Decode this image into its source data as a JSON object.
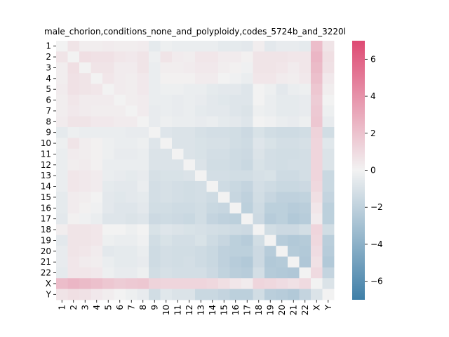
{
  "chart_data": {
    "type": "heatmap",
    "title": "male_chorion,conditions_none_and_polyploidy,codes_5724b_and_3220l",
    "labels": [
      "1",
      "2",
      "3",
      "4",
      "5",
      "6",
      "7",
      "8",
      "9",
      "10",
      "11",
      "12",
      "13",
      "14",
      "15",
      "16",
      "17",
      "18",
      "19",
      "20",
      "21",
      "22",
      "X",
      "Y"
    ],
    "colorbar": {
      "range": [
        -7,
        7
      ],
      "ticks": [
        -6,
        -4,
        -2,
        0,
        2,
        4,
        6
      ],
      "tick_labels": [
        "−6",
        "−4",
        "−2",
        "0",
        "2",
        "4",
        "6"
      ],
      "colormap": "diverging",
      "colors": {
        "low": "#3f7fa8",
        "mid": "#f2f2f2",
        "high": "#de4a73"
      }
    },
    "values": [
      [
        0,
        0.6,
        0.2,
        0.2,
        0.3,
        0.2,
        0.2,
        0.3,
        -0.5,
        -0.2,
        -0.3,
        -0.3,
        -0.3,
        -0.3,
        -0.5,
        -0.5,
        -0.6,
        0.2,
        -0.6,
        -0.4,
        -0.4,
        -0.5,
        2.2,
        0.6
      ],
      [
        0.6,
        0,
        0.8,
        0.7,
        0.7,
        0.5,
        0.4,
        0.6,
        -0.2,
        0.6,
        0.3,
        0.2,
        0.5,
        0.5,
        0.3,
        0.3,
        0.1,
        0.6,
        0.6,
        0.6,
        0.5,
        0.5,
        2.5,
        0.8
      ],
      [
        0.2,
        0.8,
        0,
        0.6,
        0.6,
        0.3,
        0.3,
        0.6,
        -0.3,
        0.2,
        0.2,
        0.3,
        0.4,
        0.4,
        0.2,
        0.1,
        -0.1,
        0.6,
        0.6,
        0.5,
        0.3,
        0.5,
        2.3,
        0.7
      ],
      [
        0.2,
        0.7,
        0.6,
        0,
        0.5,
        0.3,
        0.2,
        0.4,
        -0.3,
        0.1,
        0.1,
        0.1,
        0.3,
        0.3,
        0,
        -0.1,
        -0.3,
        0.5,
        0.5,
        0.3,
        0.2,
        0.4,
        2.1,
        0.4
      ],
      [
        0.3,
        0.7,
        0.6,
        0.5,
        0,
        0.3,
        0.2,
        0.4,
        -0.3,
        -0.2,
        -0.2,
        -0.3,
        -0.3,
        -0.5,
        -0.6,
        -0.6,
        -0.8,
        0,
        -0.2,
        -0.6,
        -0.3,
        -0.2,
        1.8,
        0.2
      ],
      [
        0.2,
        0.5,
        0.3,
        0.3,
        0.3,
        0,
        0.2,
        0.3,
        -0.3,
        -0.3,
        -0.4,
        -0.3,
        -0.4,
        -0.6,
        -0.7,
        -0.8,
        -0.8,
        0,
        -0.3,
        -0.5,
        -0.5,
        -0.4,
        1.6,
        0
      ],
      [
        0.2,
        0.4,
        0.3,
        0.2,
        0.2,
        0.2,
        0,
        0.3,
        -0.4,
        -0.3,
        -0.4,
        -0.3,
        -0.5,
        -0.6,
        -0.6,
        -0.8,
        -0.9,
        -0.2,
        -0.3,
        -0.5,
        -0.5,
        -0.4,
        1.7,
        -0.2
      ],
      [
        0.3,
        0.6,
        0.6,
        0.4,
        0.4,
        0.3,
        0.3,
        0,
        -0.4,
        -0.2,
        -0.3,
        -0.3,
        -0.4,
        -0.3,
        -0.5,
        -0.6,
        -0.8,
        0,
        -0.1,
        -0.3,
        -0.4,
        -0.2,
        1.8,
        -0.4
      ],
      [
        -0.5,
        -0.2,
        -0.3,
        -0.3,
        -0.3,
        -0.3,
        -0.4,
        -0.4,
        0,
        -0.8,
        -0.9,
        -0.9,
        -1.1,
        -1.2,
        -1.2,
        -1.3,
        -1.5,
        -1,
        -1.3,
        -1.4,
        -1.4,
        -1.3,
        1.3,
        -1.3
      ],
      [
        -0.2,
        0.6,
        0.2,
        0.1,
        -0.2,
        -0.3,
        -0.3,
        -0.2,
        -0.8,
        0,
        -0.9,
        -0.9,
        -1,
        -1.1,
        -1.1,
        -1.3,
        -1.4,
        -0.8,
        -1,
        -1.2,
        -1.2,
        -1.1,
        1.2,
        -0.7
      ],
      [
        -0.3,
        0.3,
        0.2,
        0.1,
        -0.2,
        -0.4,
        -0.4,
        -0.3,
        -0.9,
        -0.9,
        0,
        -0.9,
        -1,
        -1.2,
        -1.2,
        -1.4,
        -1.5,
        -0.9,
        -1.2,
        -1.3,
        -1.3,
        -1.2,
        1.2,
        -0.9
      ],
      [
        -0.3,
        0.2,
        0.3,
        0.1,
        -0.3,
        -0.3,
        -0.3,
        -0.3,
        -0.9,
        -0.9,
        -0.9,
        0,
        -0.9,
        -1.3,
        -1.3,
        -1.4,
        -1.6,
        -1,
        -1.2,
        -1.3,
        -1.2,
        -1.2,
        1.2,
        -0.9
      ],
      [
        -0.3,
        0.5,
        0.4,
        0.3,
        -0.3,
        -0.4,
        -0.5,
        -0.4,
        -1.1,
        -1,
        -1,
        -0.9,
        0,
        -1.2,
        -1.2,
        -1.3,
        -1.3,
        -1.1,
        -1,
        -1.4,
        -1.4,
        -1.2,
        1.2,
        -1.6
      ],
      [
        -0.3,
        0.5,
        0.4,
        0.3,
        -0.5,
        -0.6,
        -0.6,
        -0.3,
        -1.2,
        -1.1,
        -1.2,
        -1.3,
        -1.2,
        0,
        -1.4,
        -1.6,
        -1.8,
        -1.2,
        -1.4,
        -1.6,
        -1.6,
        -1.5,
        1.1,
        -1.6
      ],
      [
        -0.5,
        0.3,
        0.2,
        0,
        -0.6,
        -0.7,
        -0.6,
        -0.5,
        -1.2,
        -1.1,
        -1.2,
        -1.3,
        -1.2,
        -1.4,
        0,
        -1.7,
        -2,
        -1.3,
        -1.7,
        -2,
        -2,
        -1.9,
        0.8,
        -1.8
      ],
      [
        -0.5,
        0.3,
        0.1,
        -0.1,
        -0.6,
        -0.8,
        -0.8,
        -0.6,
        -1.3,
        -1.3,
        -1.4,
        -1.4,
        -1.3,
        -1.6,
        -1.7,
        0,
        -2.1,
        -1.4,
        -2.1,
        -2.1,
        -2.3,
        -2.2,
        0.5,
        -2.1
      ],
      [
        -0.6,
        0.1,
        -0.1,
        -0.3,
        -0.8,
        -0.8,
        -0.9,
        -0.8,
        -1.5,
        -1.4,
        -1.5,
        -1.6,
        -1.3,
        -1.8,
        -2,
        -2.1,
        0,
        -1.5,
        -2.3,
        -2.1,
        -2.5,
        -2.3,
        0.3,
        -2.1
      ],
      [
        0.2,
        0.6,
        0.6,
        0.5,
        0,
        0,
        -0.2,
        0,
        -1,
        -0.8,
        -0.9,
        -1,
        -1.1,
        -1.2,
        -1.3,
        -1.4,
        -1.5,
        0,
        -1.3,
        -1.5,
        -1.5,
        -1.2,
        1.2,
        -1.3
      ],
      [
        -0.6,
        0.6,
        0.6,
        0.5,
        -0.2,
        -0.3,
        -0.3,
        -0.1,
        -1.3,
        -1,
        -1.2,
        -1.2,
        -1,
        -1.4,
        -1.7,
        -2.1,
        -2.3,
        -1.3,
        0,
        -2.3,
        -2.5,
        -2.4,
        1.1,
        -2.2
      ],
      [
        -0.4,
        0.6,
        0.5,
        0.3,
        -0.6,
        -0.5,
        -0.5,
        -0.3,
        -1.4,
        -1.2,
        -1.3,
        -1.3,
        -1.4,
        -1.6,
        -2,
        -2.1,
        -2.1,
        -1.5,
        -2.3,
        0,
        -2.4,
        -2.5,
        0.9,
        -2.3
      ],
      [
        -0.4,
        0.5,
        0.3,
        0.2,
        -0.3,
        -0.5,
        -0.5,
        -0.4,
        -1.4,
        -1.2,
        -1.3,
        -1.2,
        -1.4,
        -1.6,
        -2,
        -2.3,
        -2.5,
        -1.5,
        -2.5,
        -2.4,
        0,
        -2.6,
        0.7,
        -2.5
      ],
      [
        -0.5,
        0.5,
        0.5,
        0.4,
        -0.2,
        -0.4,
        -0.4,
        -0.2,
        -1.3,
        -1.1,
        -1.2,
        -1.2,
        -1.2,
        -1.5,
        -1.9,
        -2.2,
        -2.3,
        -1.2,
        -2.4,
        -2.5,
        -2.6,
        0,
        1,
        -1.8
      ],
      [
        2.2,
        2.5,
        2.3,
        2.1,
        1.8,
        1.6,
        1.7,
        1.8,
        1.3,
        1.2,
        1.2,
        1.2,
        1.2,
        1.1,
        0.8,
        0.5,
        0.3,
        1.2,
        1.1,
        0.9,
        0.7,
        1,
        0,
        -0.9
      ],
      [
        0.6,
        0.8,
        0.7,
        0.4,
        0.2,
        0,
        -0.2,
        -0.4,
        -1.3,
        -0.7,
        -0.9,
        -0.9,
        -1.6,
        -1.6,
        -1.8,
        -2.1,
        -2.1,
        -1.3,
        -2.2,
        -2.3,
        -2.5,
        -1.8,
        -0.9,
        0
      ]
    ]
  }
}
